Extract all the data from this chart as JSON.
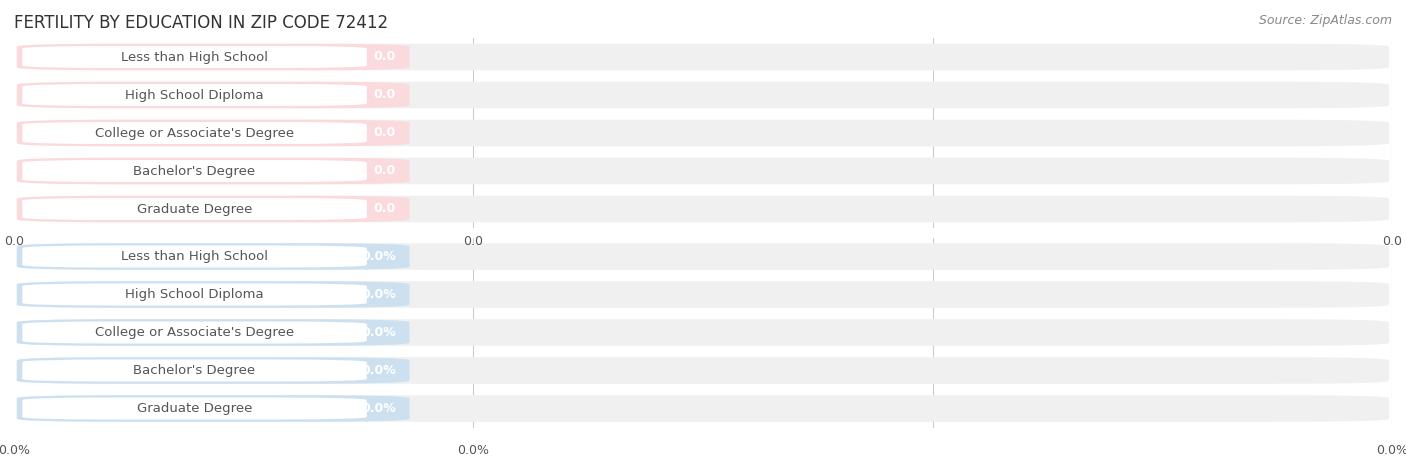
{
  "title": "FERTILITY BY EDUCATION IN ZIP CODE 72412",
  "source": "Source: ZipAtlas.com",
  "categories": [
    "Less than High School",
    "High School Diploma",
    "College or Associate's Degree",
    "Bachelor's Degree",
    "Graduate Degree"
  ],
  "top_values": [
    0.0,
    0.0,
    0.0,
    0.0,
    0.0
  ],
  "bottom_values": [
    0.0,
    0.0,
    0.0,
    0.0,
    0.0
  ],
  "top_value_labels": [
    "0.0",
    "0.0",
    "0.0",
    "0.0",
    "0.0"
  ],
  "bottom_value_labels": [
    "0.0%",
    "0.0%",
    "0.0%",
    "0.0%",
    "0.0%"
  ],
  "top_bar_color": "#F2A8A8",
  "bottom_bar_color": "#9DC3E0",
  "top_label_bg": "#FADADD",
  "bottom_label_bg": "#CCE0F0",
  "row_bg_color": "#F0F0F0",
  "tick_label_top": [
    "0.0",
    "0.0",
    "0.0"
  ],
  "tick_label_bot": [
    "0.0%",
    "0.0%",
    "0.0%"
  ],
  "title_fontsize": 12,
  "source_fontsize": 9,
  "label_fontsize": 9.5,
  "value_fontsize": 9,
  "tick_fontsize": 9,
  "background_color": "#FFFFFF",
  "grid_color": "#CCCCCC",
  "text_color": "#555555",
  "value_label_color": "#FFFFFF"
}
